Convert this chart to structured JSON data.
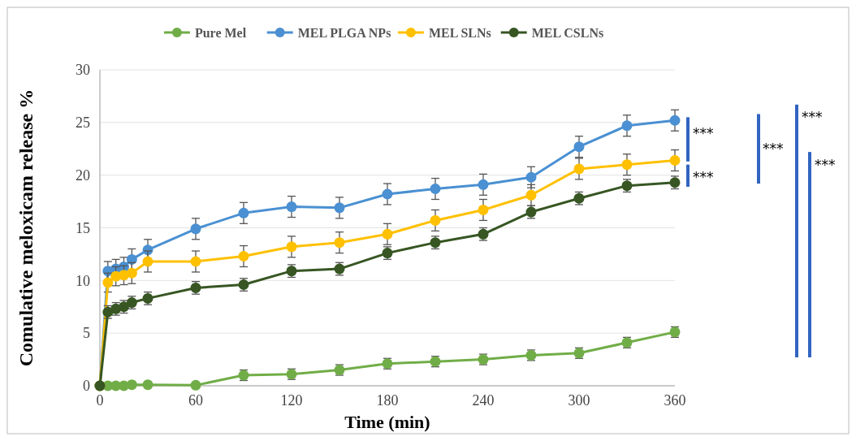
{
  "chart_data": {
    "type": "line",
    "xlabel": "Time (min)",
    "ylabel": "Comulative meloxicam release %",
    "x": [
      0,
      5,
      10,
      15,
      20,
      30,
      60,
      90,
      120,
      150,
      180,
      210,
      240,
      270,
      300,
      330,
      360
    ],
    "xlim": [
      0,
      360
    ],
    "xticks": [
      0,
      60,
      120,
      180,
      240,
      300,
      360
    ],
    "ylim": [
      0,
      30
    ],
    "yticks": [
      0,
      5,
      10,
      15,
      20,
      25,
      30
    ],
    "grid": "y",
    "legend": "top",
    "marker": "circle",
    "line_style": "solid",
    "series": [
      {
        "name": "Pure Mel",
        "color": "#70ad47",
        "values": [
          0,
          0,
          0,
          0,
          0.1,
          0.1,
          0.05,
          1.0,
          1.1,
          1.5,
          2.1,
          2.3,
          2.5,
          2.9,
          3.1,
          4.1,
          5.1
        ],
        "errors": [
          null,
          null,
          null,
          null,
          null,
          null,
          null,
          0.5,
          0.5,
          0.5,
          0.5,
          0.5,
          0.5,
          0.5,
          0.5,
          0.5,
          0.5
        ]
      },
      {
        "name": "MEL PLGA NPs",
        "color": "#4a90d2",
        "values": [
          0,
          10.9,
          11.1,
          11.3,
          12.0,
          12.9,
          14.9,
          16.4,
          17.0,
          16.9,
          18.2,
          18.7,
          19.1,
          19.8,
          22.7,
          24.7,
          25.2
        ],
        "errors": [
          null,
          0.9,
          0.9,
          0.9,
          1.0,
          1.0,
          1.0,
          1.0,
          1.0,
          1.0,
          1.0,
          1.0,
          1.0,
          1.0,
          1.0,
          1.0,
          1.0
        ]
      },
      {
        "name": "MEL SLNs",
        "color": "#ffc000",
        "values": [
          0,
          9.8,
          10.4,
          10.5,
          10.7,
          11.8,
          11.8,
          12.3,
          13.2,
          13.6,
          14.4,
          15.7,
          16.7,
          18.1,
          20.6,
          21.0,
          21.4
        ],
        "errors": [
          null,
          0.9,
          0.9,
          0.9,
          1.0,
          1.0,
          1.0,
          1.0,
          1.0,
          1.0,
          1.0,
          1.0,
          1.0,
          1.0,
          1.0,
          1.0,
          1.0
        ]
      },
      {
        "name": "MEL CSLNs",
        "color": "#375623",
        "values": [
          0,
          7.0,
          7.3,
          7.5,
          7.9,
          8.3,
          9.3,
          9.6,
          10.9,
          11.1,
          12.6,
          13.6,
          14.4,
          16.5,
          17.8,
          19.0,
          19.3
        ],
        "errors": [
          null,
          0.6,
          0.6,
          0.6,
          0.6,
          0.6,
          0.6,
          0.6,
          0.6,
          0.6,
          0.6,
          0.6,
          0.6,
          0.6,
          0.6,
          0.6,
          0.6
        ]
      }
    ],
    "annotations": [
      "***",
      "***",
      "***",
      "***",
      "***"
    ]
  }
}
